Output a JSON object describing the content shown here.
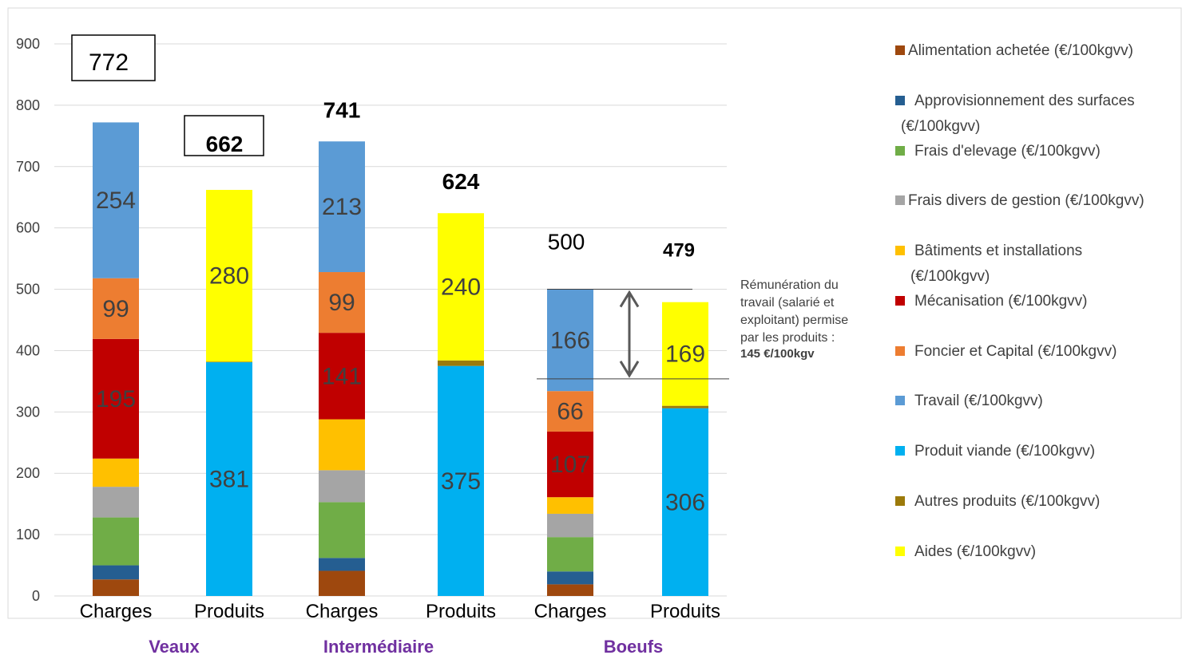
{
  "chart_data": {
    "type": "bar",
    "stacked": true,
    "ylim": [
      0,
      900
    ],
    "y_ticks": [
      0,
      100,
      200,
      300,
      400,
      500,
      600,
      700,
      800,
      900
    ],
    "grid": true,
    "legend_position": "right",
    "bars": [
      {
        "category": "Charges",
        "group": "Veaux",
        "total": 772,
        "total_label": "772",
        "total_style": "boxed",
        "segments": [
          {
            "series": "Alimentation achetée (€/100kgvv)",
            "value": 27
          },
          {
            "series": "Approvisionnement des surfaces (€/100kgvv)",
            "value": 23
          },
          {
            "series": "Frais d'elevage (€/100kgvv)",
            "value": 78
          },
          {
            "series": "Frais divers de gestion (€/100kgvv)",
            "value": 50
          },
          {
            "series": "Bâtiments et installations (€/100kgvv)",
            "value": 46
          },
          {
            "series": "Mécanisation (€/100kgvv)",
            "value": 195,
            "label": "195"
          },
          {
            "series": "Foncier et Capital (€/100kgvv)",
            "value": 99,
            "label": "99"
          },
          {
            "series": "Travail (€/100kgvv)",
            "value": 254,
            "label": "254"
          }
        ]
      },
      {
        "category": "Produits",
        "group": "Veaux",
        "total": 662,
        "total_label": "662",
        "total_style": "boxed-bold",
        "segments": [
          {
            "series": "Produit viande (€/100kgvv)",
            "value": 381,
            "label": "381"
          },
          {
            "series": "Autres produits (€/100kgvv)",
            "value": 1
          },
          {
            "series": "Aides (€/100kgvv)",
            "value": 280,
            "label": "280"
          }
        ]
      },
      {
        "category": "Charges",
        "group": "Intermédiaire",
        "total": 741,
        "total_label": "741",
        "total_style": "bold",
        "segments": [
          {
            "series": "Alimentation achetée (€/100kgvv)",
            "value": 41
          },
          {
            "series": "Approvisionnement des surfaces (€/100kgvv)",
            "value": 21
          },
          {
            "series": "Frais d'elevage (€/100kgvv)",
            "value": 91
          },
          {
            "series": "Frais divers de gestion (€/100kgvv)",
            "value": 52
          },
          {
            "series": "Bâtiments et installations (€/100kgvv)",
            "value": 83
          },
          {
            "series": "Mécanisation (€/100kgvv)",
            "value": 141,
            "label": "141"
          },
          {
            "series": "Foncier et Capital (€/100kgvv)",
            "value": 99,
            "label": "99"
          },
          {
            "series": "Travail (€/100kgvv)",
            "value": 213,
            "label": "213"
          }
        ]
      },
      {
        "category": "Produits",
        "group": "Intermédiaire",
        "total": 624,
        "total_label": "624",
        "total_style": "bold",
        "segments": [
          {
            "series": "Produit viande (€/100kgvv)",
            "value": 375,
            "label": "375"
          },
          {
            "series": "Autres produits (€/100kgvv)",
            "value": 9
          },
          {
            "series": "Aides (€/100kgvv)",
            "value": 240,
            "label": "240"
          }
        ]
      },
      {
        "category": "Charges",
        "group": "Boeufs",
        "total": 500,
        "total_label": "500",
        "total_style": "plain",
        "segments": [
          {
            "series": "Alimentation achetée (€/100kgvv)",
            "value": 19
          },
          {
            "series": "Approvisionnement des surfaces (€/100kgvv)",
            "value": 21
          },
          {
            "series": "Frais d'elevage (€/100kgvv)",
            "value": 56
          },
          {
            "series": "Frais divers de gestion (€/100kgvv)",
            "value": 38
          },
          {
            "series": "Bâtiments et installations (€/100kgvv)",
            "value": 27
          },
          {
            "series": "Mécanisation (€/100kgvv)",
            "value": 107,
            "label": "107"
          },
          {
            "series": "Foncier et Capital (€/100kgvv)",
            "value": 66,
            "label": "66"
          },
          {
            "series": "Travail (€/100kgvv)",
            "value": 166,
            "label": "166"
          }
        ]
      },
      {
        "category": "Produits",
        "group": "Boeufs",
        "total": 479,
        "total_label": "479",
        "total_style": "bold",
        "segments": [
          {
            "series": "Produit viande (€/100kgvv)",
            "value": 306,
            "label": "306"
          },
          {
            "series": "Autres produits (€/100kgvv)",
            "value": 4
          },
          {
            "series": "Aides (€/100kgvv)",
            "value": 169,
            "label": "169"
          }
        ]
      }
    ],
    "groups": [
      "Veaux",
      "Intermédiaire",
      "Boeufs"
    ],
    "legend": [
      {
        "name": "Alimentation achetée (€/100kgvv)",
        "color": "#9e480e",
        "lines": [
          "Alimentation achetée (€/100kgvv)"
        ]
      },
      {
        "name": "Approvisionnement des surfaces (€/100kgvv)",
        "color": "#255e91",
        "lines": [
          "Approvisionnement des surfaces",
          "(€/100kgvv)"
        ]
      },
      {
        "name": "Frais d'elevage (€/100kgvv)",
        "color": "#70ad47",
        "lines": [
          "Frais d'elevage (€/100kgvv)"
        ]
      },
      {
        "name": "Frais divers de gestion (€/100kgvv)",
        "color": "#a5a5a5",
        "lines": [
          "Frais divers de gestion (€/100kgvv)"
        ]
      },
      {
        "name": "Bâtiments et installations (€/100kgvv)",
        "color": "#ffc000",
        "lines": [
          "Bâtiments et installations",
          "(€/100kgvv)"
        ]
      },
      {
        "name": "Mécanisation (€/100kgvv)",
        "color": "#c00000",
        "lines": [
          "Mécanisation (€/100kgvv)"
        ]
      },
      {
        "name": "Foncier et Capital (€/100kgvv)",
        "color": "#ed7d31",
        "lines": [
          "Foncier et Capital (€/100kgvv)"
        ]
      },
      {
        "name": "Travail (€/100kgvv)",
        "color": "#5b9bd5",
        "lines": [
          "Travail (€/100kgvv)"
        ]
      },
      {
        "name": "Produit viande (€/100kgvv)",
        "color": "#00b0f0",
        "lines": [
          "Produit viande (€/100kgvv)"
        ]
      },
      {
        "name": "Autres produits (€/100kgvv)",
        "color": "#9c7a0a",
        "lines": [
          "Autres produits (€/100kgvv)"
        ]
      },
      {
        "name": "Aides (€/100kgvv)",
        "color": "#ffff00",
        "lines": [
          "Aides (€/100kgvv)"
        ]
      }
    ],
    "annotation": {
      "lines": [
        "Rémunération du",
        "travail (salarié et",
        "exploitant) permise",
        "par les produits :"
      ],
      "bold_line": "145 €/100kgv",
      "range": [
        354,
        500
      ]
    },
    "group_label_color": "#7030a0"
  }
}
